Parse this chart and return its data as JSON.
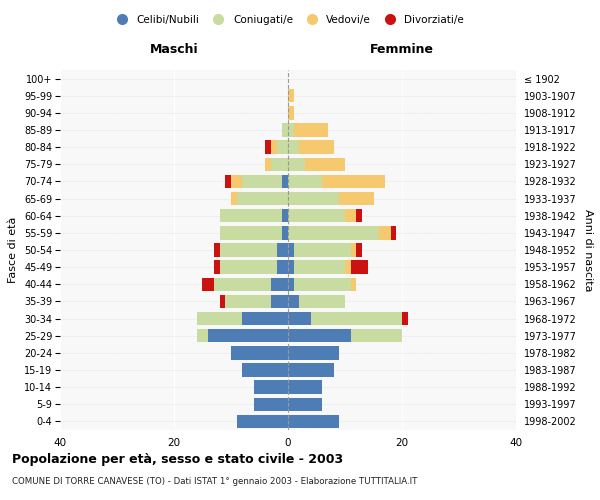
{
  "age_groups": [
    "0-4",
    "5-9",
    "10-14",
    "15-19",
    "20-24",
    "25-29",
    "30-34",
    "35-39",
    "40-44",
    "45-49",
    "50-54",
    "55-59",
    "60-64",
    "65-69",
    "70-74",
    "75-79",
    "80-84",
    "85-89",
    "90-94",
    "95-99",
    "100+"
  ],
  "birth_years": [
    "1998-2002",
    "1993-1997",
    "1988-1992",
    "1983-1987",
    "1978-1982",
    "1973-1977",
    "1968-1972",
    "1963-1967",
    "1958-1962",
    "1953-1957",
    "1948-1952",
    "1943-1947",
    "1938-1942",
    "1933-1937",
    "1928-1932",
    "1923-1927",
    "1918-1922",
    "1913-1917",
    "1908-1912",
    "1903-1907",
    "≤ 1902"
  ],
  "maschi": {
    "celibi": [
      9,
      6,
      6,
      8,
      10,
      14,
      8,
      3,
      3,
      2,
      2,
      1,
      1,
      0,
      1,
      0,
      0,
      0,
      0,
      0,
      0
    ],
    "coniugati": [
      0,
      0,
      0,
      0,
      0,
      2,
      8,
      8,
      10,
      10,
      10,
      11,
      11,
      9,
      7,
      3,
      2,
      1,
      0,
      0,
      0
    ],
    "vedovi": [
      0,
      0,
      0,
      0,
      0,
      0,
      0,
      0,
      0,
      0,
      0,
      0,
      0,
      1,
      2,
      1,
      1,
      0,
      0,
      0,
      0
    ],
    "divorziati": [
      0,
      0,
      0,
      0,
      0,
      0,
      0,
      1,
      2,
      1,
      1,
      0,
      0,
      0,
      1,
      0,
      1,
      0,
      0,
      0,
      0
    ]
  },
  "femmine": {
    "nubili": [
      9,
      6,
      6,
      8,
      9,
      11,
      4,
      2,
      1,
      1,
      1,
      0,
      0,
      0,
      0,
      0,
      0,
      0,
      0,
      0,
      0
    ],
    "coniugate": [
      0,
      0,
      0,
      0,
      0,
      9,
      16,
      8,
      10,
      9,
      10,
      16,
      10,
      9,
      6,
      3,
      2,
      1,
      0,
      0,
      0
    ],
    "vedove": [
      0,
      0,
      0,
      0,
      0,
      0,
      0,
      0,
      1,
      1,
      1,
      2,
      2,
      6,
      11,
      7,
      6,
      6,
      1,
      1,
      0
    ],
    "divorziate": [
      0,
      0,
      0,
      0,
      0,
      0,
      1,
      0,
      0,
      3,
      1,
      1,
      1,
      0,
      0,
      0,
      0,
      0,
      0,
      0,
      0
    ]
  },
  "colors": {
    "celibi": "#4e7db5",
    "coniugati": "#c8dba0",
    "vedovi": "#f7c96e",
    "divorziati": "#cc1111"
  },
  "xlim": 40,
  "title": "Popolazione per età, sesso e stato civile - 2003",
  "subtitle": "COMUNE DI TORRE CANAVESE (TO) - Dati ISTAT 1° gennaio 2003 - Elaborazione TUTTITALIA.IT",
  "ylabel_left": "Fasce di età",
  "ylabel_right": "Anni di nascita",
  "header_maschi": "Maschi",
  "header_femmine": "Femmine",
  "legend_labels": [
    "Celibi/Nubili",
    "Coniugati/e",
    "Vedovi/e",
    "Divorziati/e"
  ],
  "bg_color": "#f8f8f8"
}
